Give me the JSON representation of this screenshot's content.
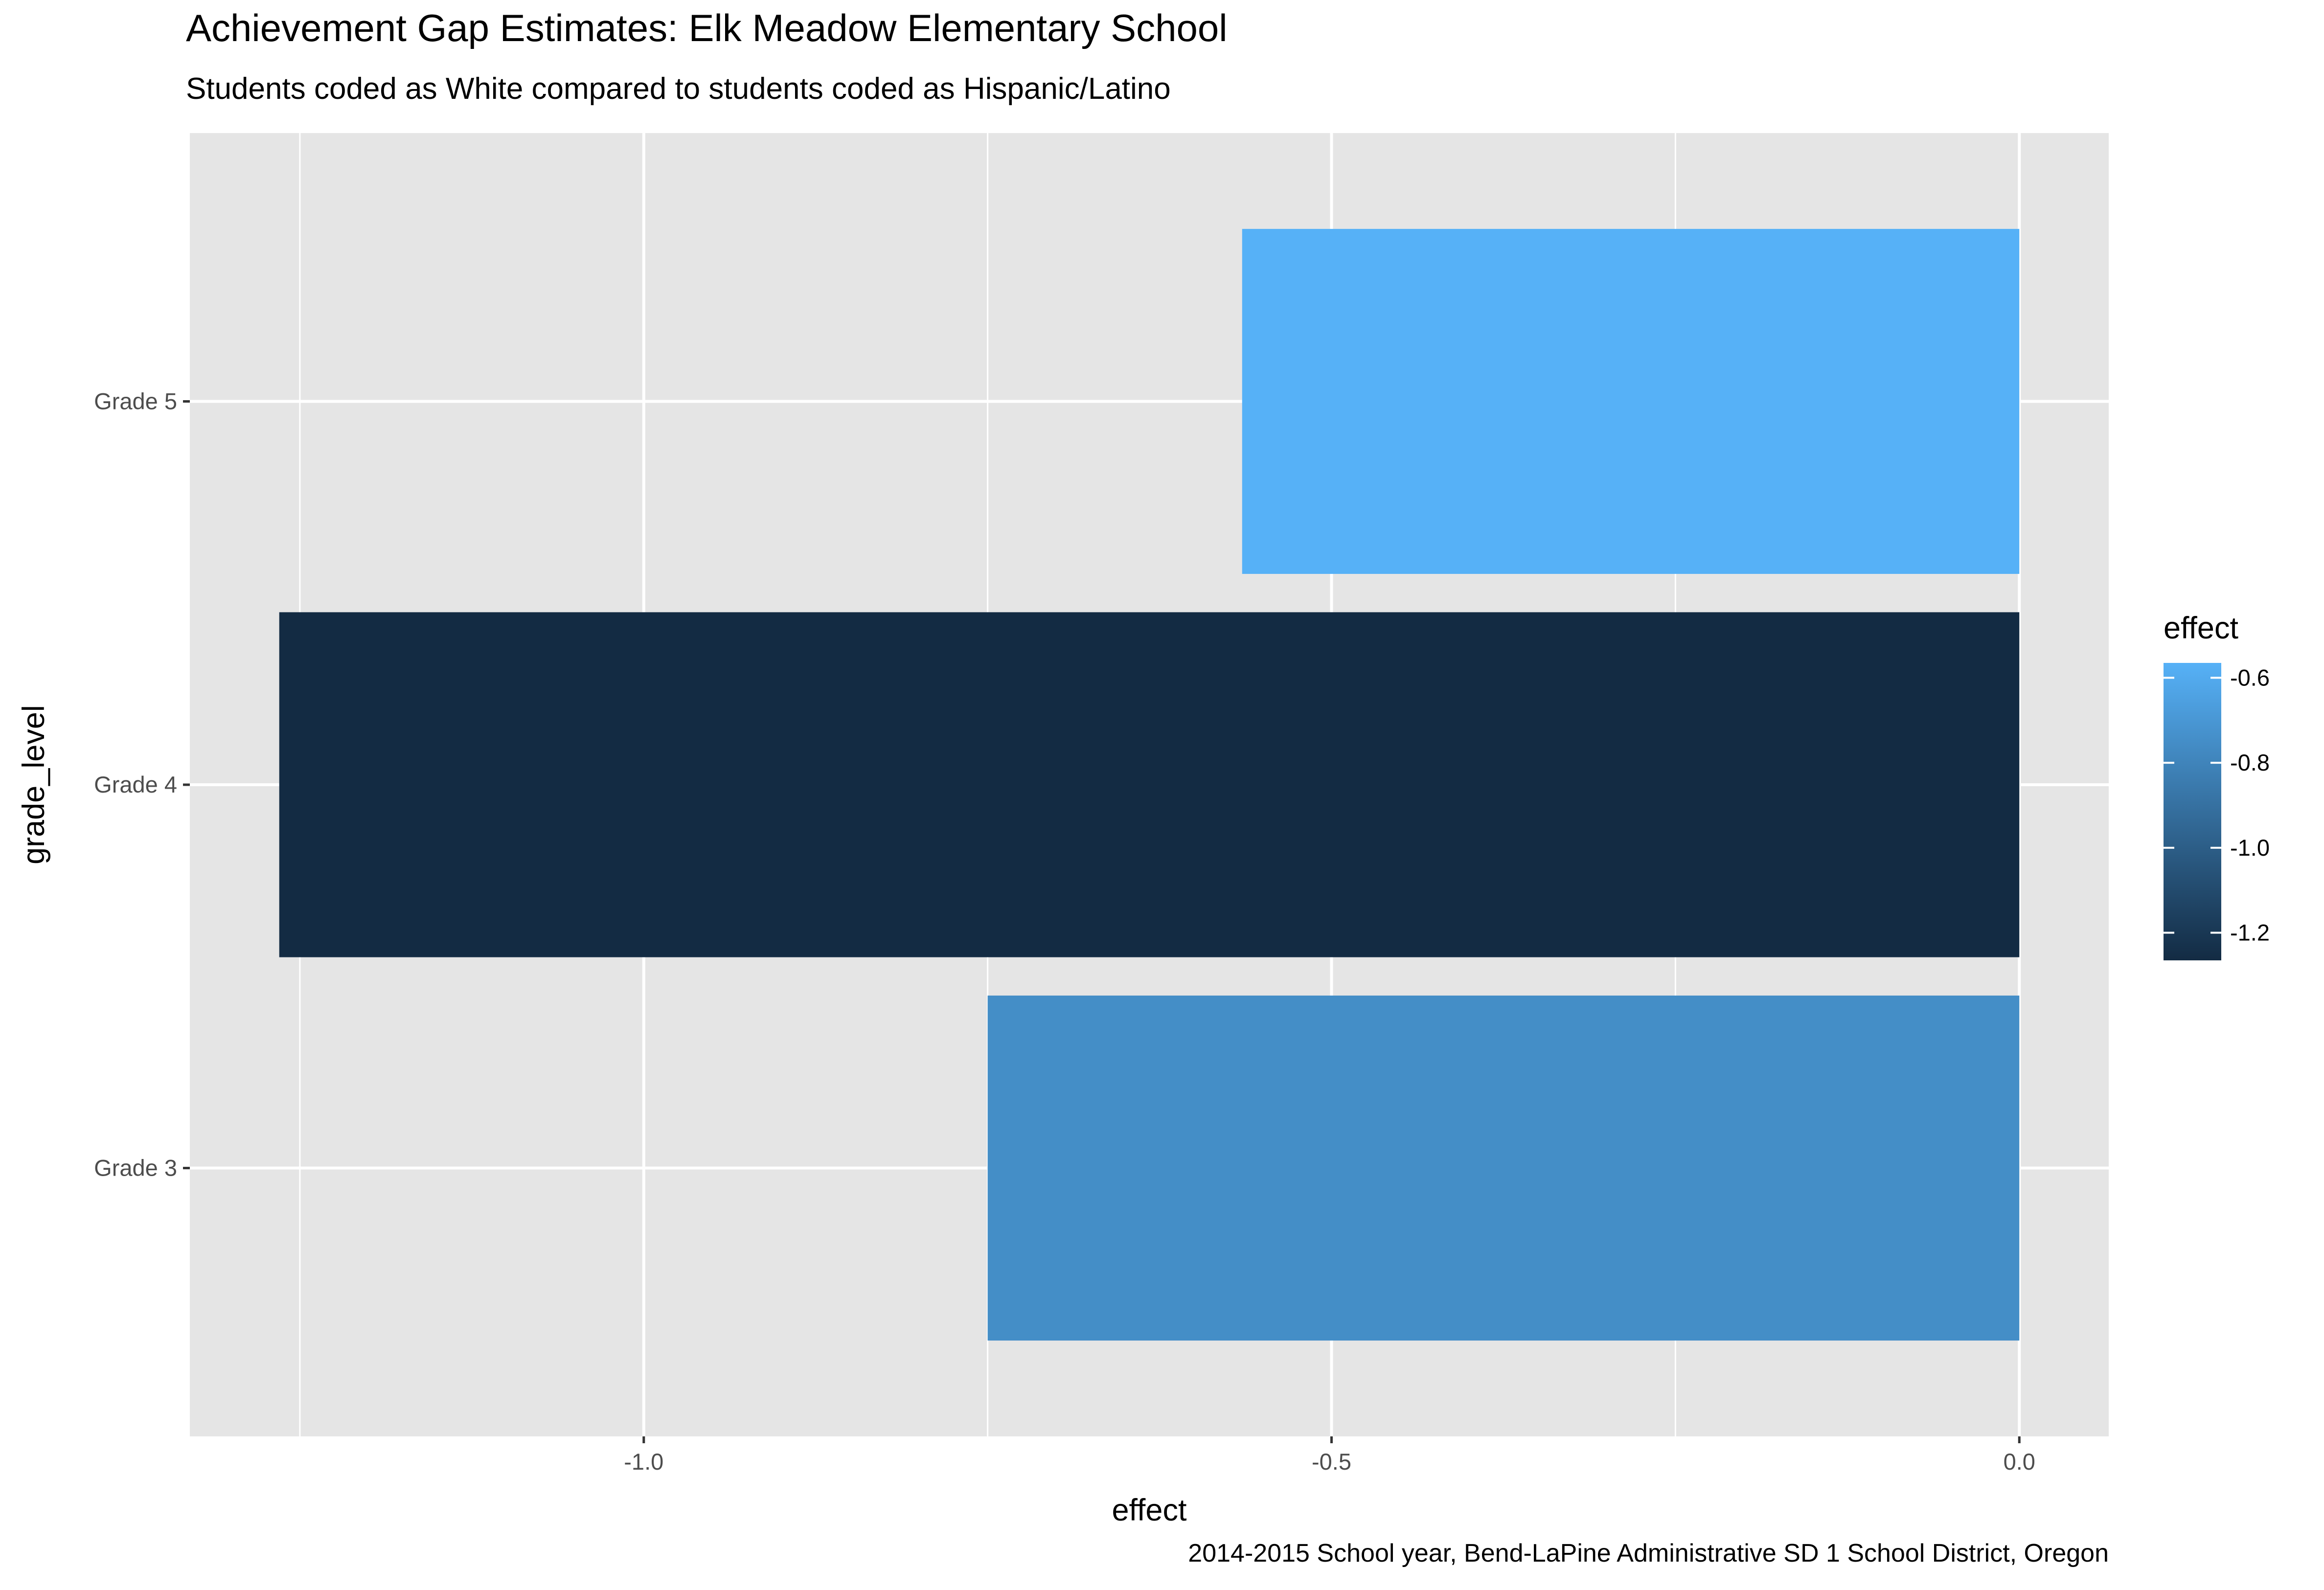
{
  "title": "Achievement Gap Estimates: Elk Meadow Elementary School",
  "subtitle": "Students coded as White compared to students coded as Hispanic/Latino",
  "caption": "2014-2015 School year, Bend-LaPine Administrative SD 1 School District, Oregon",
  "chart_data": {
    "type": "bar",
    "orientation": "horizontal",
    "categories": [
      "Grade 3",
      "Grade 4",
      "Grade 5"
    ],
    "values": [
      -0.75,
      -1.265,
      -0.565
    ],
    "xlabel": "effect",
    "ylabel": "grade_level",
    "xlim": [
      -1.33,
      0.065
    ],
    "x_ticks": [
      -1.0,
      -0.5,
      0.0
    ],
    "x_tick_labels": [
      "-1.0",
      "-0.5",
      "0.0"
    ],
    "grid": true,
    "legend": {
      "title": "effect",
      "type": "colorbar",
      "position": "right",
      "range": [
        -1.265,
        -0.565
      ],
      "low_color": "#132B43",
      "high_color": "#56B1F7",
      "ticks": [
        -0.6,
        -0.8,
        -1.0,
        -1.2
      ],
      "tick_labels": [
        "-0.6",
        "-0.8",
        "-1.0",
        "-1.2"
      ]
    },
    "panel_background": "#E5E5E5",
    "grid_color": "#FFFFFF"
  }
}
